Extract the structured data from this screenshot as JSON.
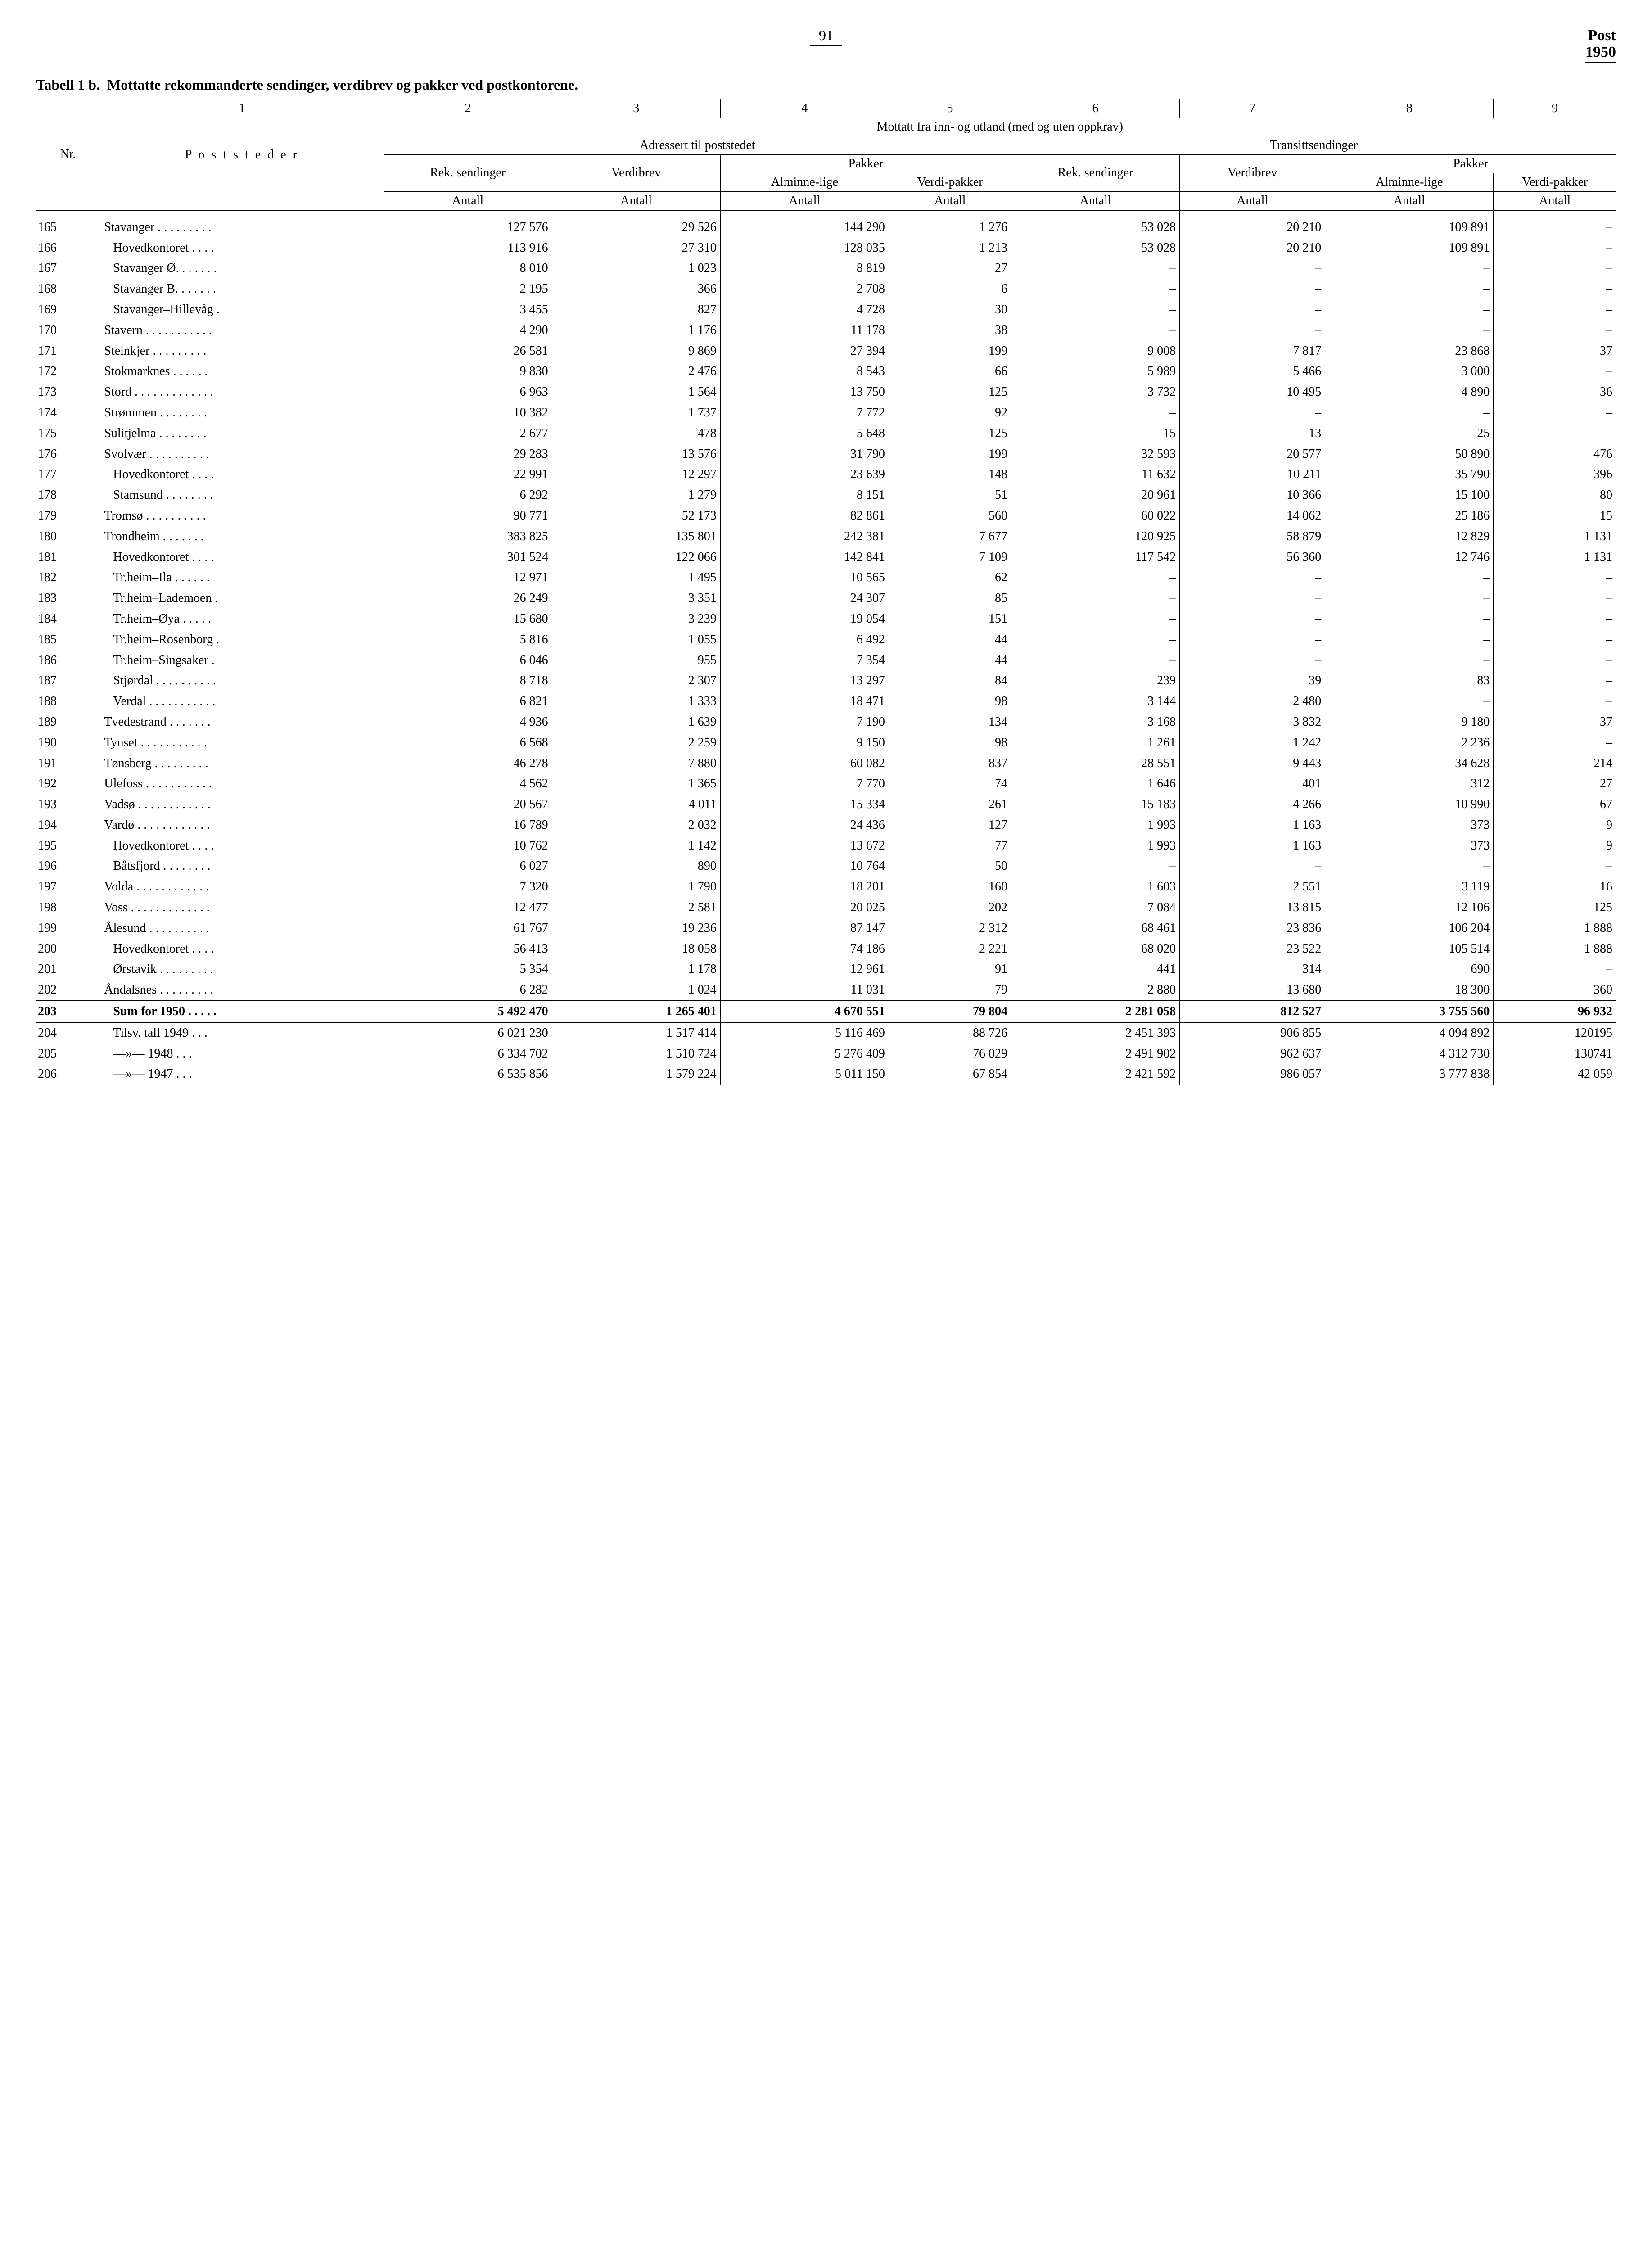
{
  "page": {
    "number": "91",
    "corner_top": "Post",
    "corner_year": "1950"
  },
  "title": {
    "prefix": "Tabell 1 b.",
    "text": "Mottatte rekommanderte sendinger, verdibrev og pakker ved postkontorene."
  },
  "header": {
    "col_nums": [
      "1",
      "2",
      "3",
      "4",
      "5",
      "6",
      "7",
      "8",
      "9"
    ],
    "nr": "Nr.",
    "poststeder": "P o s t s t e d e r",
    "mottatt": "Mottatt fra inn- og utland (med og uten oppkrav)",
    "adressert": "Adressert til poststedet",
    "transitt": "Transittsendinger",
    "rek": "Rek. sendinger",
    "verdibrev": "Verdibrev",
    "pakker": "Pakker",
    "alminne": "Alminne-lige",
    "verdipakker": "Verdi-pakker",
    "antall": "Antall"
  },
  "rows": [
    {
      "nr": "165",
      "name": "Stavanger . . . . . . . . .",
      "indent": false,
      "c": [
        "127 576",
        "29 526",
        "144 290",
        "1 276",
        "53 028",
        "20 210",
        "109 891",
        "–"
      ]
    },
    {
      "nr": "166",
      "name": "Hovedkontoret  . . . .",
      "indent": true,
      "c": [
        "113 916",
        "27 310",
        "128 035",
        "1 213",
        "53 028",
        "20 210",
        "109 891",
        "–"
      ]
    },
    {
      "nr": "167",
      "name": "Stavanger Ø.  . . . . . .",
      "indent": true,
      "c": [
        "8 010",
        "1 023",
        "8 819",
        "27",
        "–",
        "–",
        "–",
        "–"
      ]
    },
    {
      "nr": "168",
      "name": "Stavanger B.  . . . . . .",
      "indent": true,
      "c": [
        "2 195",
        "366",
        "2 708",
        "6",
        "–",
        "–",
        "–",
        "–"
      ]
    },
    {
      "nr": "169",
      "name": "Stavanger–Hillevåg .",
      "indent": true,
      "c": [
        "3 455",
        "827",
        "4 728",
        "30",
        "–",
        "–",
        "–",
        "–"
      ]
    },
    {
      "nr": "170",
      "name": "Stavern . . . . . . . . . . .",
      "indent": false,
      "c": [
        "4 290",
        "1 176",
        "11 178",
        "38",
        "–",
        "–",
        "–",
        "–"
      ]
    },
    {
      "nr": "171",
      "name": "Steinkjer  . . . . . . . . .",
      "indent": false,
      "c": [
        "26 581",
        "9 869",
        "27 394",
        "199",
        "9 008",
        "7 817",
        "23 868",
        "37"
      ]
    },
    {
      "nr": "172",
      "name": "Stokmarknes  . . . . . .",
      "indent": false,
      "c": [
        "9 830",
        "2 476",
        "8 543",
        "66",
        "5 989",
        "5 466",
        "3 000",
        "–"
      ]
    },
    {
      "nr": "173",
      "name": "Stord . . . . . . . . . . . . .",
      "indent": false,
      "c": [
        "6 963",
        "1 564",
        "13 750",
        "125",
        "3 732",
        "10 495",
        "4 890",
        "36"
      ]
    },
    {
      "nr": "174",
      "name": "Strømmen  . . . . . . . .",
      "indent": false,
      "c": [
        "10 382",
        "1 737",
        "7 772",
        "92",
        "–",
        "–",
        "–",
        "–"
      ]
    },
    {
      "nr": "175",
      "name": "Sulitjelma  . . . . . . . .",
      "indent": false,
      "c": [
        "2 677",
        "478",
        "5 648",
        "125",
        "15",
        "13",
        "25",
        "–"
      ]
    },
    {
      "nr": "176",
      "name": "Svolvær  . . . . . . . . . .",
      "indent": false,
      "c": [
        "29 283",
        "13 576",
        "31 790",
        "199",
        "32 593",
        "20 577",
        "50 890",
        "476"
      ]
    },
    {
      "nr": "177",
      "name": "Hovedkontoret  . . . .",
      "indent": true,
      "c": [
        "22 991",
        "12 297",
        "23 639",
        "148",
        "11 632",
        "10 211",
        "35 790",
        "396"
      ]
    },
    {
      "nr": "178",
      "name": "Stamsund . . . . . . . .",
      "indent": true,
      "c": [
        "6 292",
        "1 279",
        "8 151",
        "51",
        "20 961",
        "10 366",
        "15 100",
        "80"
      ]
    },
    {
      "nr": "179",
      "name": "Tromsø  . . . . . . . . . .",
      "indent": false,
      "c": [
        "90 771",
        "52 173",
        "82 861",
        "560",
        "60 022",
        "14 062",
        "25 186",
        "15"
      ]
    },
    {
      "nr": "180",
      "name": "Trondheim  . . . . . . .",
      "indent": false,
      "c": [
        "383 825",
        "135 801",
        "242 381",
        "7 677",
        "120 925",
        "58 879",
        "12 829",
        "1 131"
      ]
    },
    {
      "nr": "181",
      "name": "Hovedkontoret  . . . .",
      "indent": true,
      "c": [
        "301 524",
        "122 066",
        "142 841",
        "7 109",
        "117 542",
        "56 360",
        "12 746",
        "1 131"
      ]
    },
    {
      "nr": "182",
      "name": "Tr.heim–Ila  . . . . . .",
      "indent": true,
      "c": [
        "12 971",
        "1 495",
        "10 565",
        "62",
        "–",
        "–",
        "–",
        "–"
      ]
    },
    {
      "nr": "183",
      "name": "Tr.heim–Lademoen .",
      "indent": true,
      "c": [
        "26 249",
        "3 351",
        "24 307",
        "85",
        "–",
        "–",
        "–",
        "–"
      ]
    },
    {
      "nr": "184",
      "name": "Tr.heim–Øya  . . . . .",
      "indent": true,
      "c": [
        "15 680",
        "3 239",
        "19 054",
        "151",
        "–",
        "–",
        "–",
        "–"
      ]
    },
    {
      "nr": "185",
      "name": "Tr.heim–Rosenborg .",
      "indent": true,
      "c": [
        "5 816",
        "1 055",
        "6 492",
        "44",
        "–",
        "–",
        "–",
        "–"
      ]
    },
    {
      "nr": "186",
      "name": "Tr.heim–Singsaker  .",
      "indent": true,
      "c": [
        "6 046",
        "955",
        "7 354",
        "44",
        "–",
        "–",
        "–",
        "–"
      ]
    },
    {
      "nr": "187",
      "name": "Stjørdal  . . . . . . . . . .",
      "indent": true,
      "c": [
        "8 718",
        "2 307",
        "13 297",
        "84",
        "239",
        "39",
        "83",
        "–"
      ]
    },
    {
      "nr": "188",
      "name": "Verdal  . . . . . . . . . . .",
      "indent": true,
      "c": [
        "6 821",
        "1 333",
        "18 471",
        "98",
        "3 144",
        "2 480",
        "–",
        "–"
      ]
    },
    {
      "nr": "189",
      "name": "Tvedestrand  . . . . . . .",
      "indent": false,
      "c": [
        "4 936",
        "1 639",
        "7 190",
        "134",
        "3 168",
        "3 832",
        "9 180",
        "37"
      ]
    },
    {
      "nr": "190",
      "name": "Tynset  . . . . . . . . . . .",
      "indent": false,
      "c": [
        "6 568",
        "2 259",
        "9 150",
        "98",
        "1 261",
        "1 242",
        "2 236",
        "–"
      ]
    },
    {
      "nr": "191",
      "name": "Tønsberg  . . . . . . . . .",
      "indent": false,
      "c": [
        "46 278",
        "7 880",
        "60 082",
        "837",
        "28 551",
        "9 443",
        "34 628",
        "214"
      ]
    },
    {
      "nr": "192",
      "name": "Ulefoss . . . . . . . . . . .",
      "indent": false,
      "c": [
        "4 562",
        "1 365",
        "7 770",
        "74",
        "1 646",
        "401",
        "312",
        "27"
      ]
    },
    {
      "nr": "193",
      "name": "Vadsø  . . . . . . . . . . . .",
      "indent": false,
      "c": [
        "20 567",
        "4 011",
        "15 334",
        "261",
        "15 183",
        "4 266",
        "10 990",
        "67"
      ]
    },
    {
      "nr": "194",
      "name": "Vardø  . . . . . . . . . . . .",
      "indent": false,
      "c": [
        "16 789",
        "2 032",
        "24 436",
        "127",
        "1 993",
        "1 163",
        "373",
        "9"
      ]
    },
    {
      "nr": "195",
      "name": "Hovedkontoret  . . . .",
      "indent": true,
      "c": [
        "10 762",
        "1 142",
        "13 672",
        "77",
        "1 993",
        "1 163",
        "373",
        "9"
      ]
    },
    {
      "nr": "196",
      "name": "Båtsfjord  . . . . . . . .",
      "indent": true,
      "c": [
        "6 027",
        "890",
        "10 764",
        "50",
        "–",
        "–",
        "–",
        "–"
      ]
    },
    {
      "nr": "197",
      "name": "Volda  . . . . . . . . . . . .",
      "indent": false,
      "c": [
        "7 320",
        "1 790",
        "18 201",
        "160",
        "1 603",
        "2 551",
        "3 119",
        "16"
      ]
    },
    {
      "nr": "198",
      "name": "Voss  . . . . . . . . . . . . .",
      "indent": false,
      "c": [
        "12 477",
        "2 581",
        "20 025",
        "202",
        "7 084",
        "13 815",
        "12 106",
        "125"
      ]
    },
    {
      "nr": "199",
      "name": "Ålesund  . . . . . . . . . .",
      "indent": false,
      "c": [
        "61 767",
        "19 236",
        "87 147",
        "2 312",
        "68 461",
        "23 836",
        "106 204",
        "1 888"
      ]
    },
    {
      "nr": "200",
      "name": "Hovedkontoret  . . . .",
      "indent": true,
      "c": [
        "56 413",
        "18 058",
        "74 186",
        "2 221",
        "68 020",
        "23 522",
        "105 514",
        "1 888"
      ]
    },
    {
      "nr": "201",
      "name": "Ørstavik  . . . . . . . . .",
      "indent": true,
      "c": [
        "5 354",
        "1 178",
        "12 961",
        "91",
        "441",
        "314",
        "690",
        "–"
      ]
    },
    {
      "nr": "202",
      "name": "Åndalsnes . . . . . . . . .",
      "indent": false,
      "c": [
        "6 282",
        "1 024",
        "11 031",
        "79",
        "2 880",
        "13 680",
        "18 300",
        "360"
      ]
    }
  ],
  "sum_row": {
    "nr": "203",
    "name": "Sum for 1950  . . . . .",
    "c": [
      "5 492 470",
      "1 265 401",
      "4 670 551",
      "79 804",
      "2 281 058",
      "812 527",
      "3 755 560",
      "96 932"
    ]
  },
  "footer_rows": [
    {
      "nr": "204",
      "name": "Tilsv. tall 1949   . . .",
      "c": [
        "6 021 230",
        "1 517 414",
        "5 116 469",
        "88 726",
        "2 451 393",
        "906 855",
        "4 094 892",
        "120195"
      ]
    },
    {
      "nr": "205",
      "name": "—»—    1948   . . .",
      "c": [
        "6 334 702",
        "1 510 724",
        "5 276 409",
        "76 029",
        "2 491 902",
        "962 637",
        "4 312 730",
        "130741"
      ]
    },
    {
      "nr": "206",
      "name": "—»—    1947   . . .",
      "c": [
        "6 535 856",
        "1 579 224",
        "5 011 150",
        "67 854",
        "2 421 592",
        "986 057",
        "3 777 838",
        "42 059"
      ]
    }
  ]
}
